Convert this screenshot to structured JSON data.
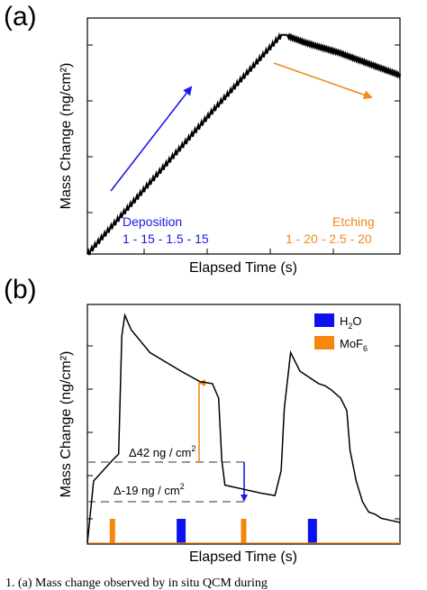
{
  "colors": {
    "deposition": "#1a1ae6",
    "etching": "#f08a1a",
    "h2o_bar": "#0a12f0",
    "mof6_bar": "#f7860f",
    "trace": "#000000",
    "dash": "#8a8a8a"
  },
  "panel_a": {
    "label": "(a)",
    "deposition_label": "Deposition",
    "deposition_sequence": "1 - 15 - 1.5 - 15",
    "etching_label": "Etching",
    "etching_sequence": "1 - 20 - 2.5 - 20"
  },
  "panel_b": {
    "label": "(b)",
    "annotation_upper": "Δ42 ng / cm",
    "annotation_upper_sup": "2",
    "annotation_lower": "Δ-19 ng / cm",
    "annotation_lower_sup": "2",
    "legend": [
      {
        "base": "H",
        "sub": "2",
        "tail": "O",
        "color": "#0a12f0"
      },
      {
        "base": "MoF",
        "sub": "6",
        "tail": "",
        "color": "#f7860f"
      }
    ]
  },
  "caption": "1. (a) Mass change observed by in situ QCM during",
  "chart_data": [
    {
      "type": "line",
      "panel": "(a)",
      "xlabel": "Elapsed Time (s)",
      "ylabel": "Mass Change (ng/cm²)",
      "x_ticks_labeled": false,
      "y_ticks_labeled": false,
      "series": [
        {
          "name": "Deposition",
          "x": [
            0.0,
            0.2,
            0.4,
            0.5,
            0.62,
            0.64
          ],
          "y": [
            0.0,
            0.31,
            0.62,
            0.77,
            0.95,
            0.95
          ]
        },
        {
          "name": "Etching",
          "x": [
            0.64,
            0.7,
            0.8,
            0.9,
            1.0
          ],
          "y": [
            0.95,
            0.92,
            0.88,
            0.83,
            0.78
          ]
        }
      ]
    },
    {
      "type": "line",
      "panel": "(b)",
      "xlabel": "Elapsed Time (s)",
      "ylabel": "Mass Change (ng/cm²)",
      "x_ticks_labeled": false,
      "y_ticks_labeled": false,
      "series": [
        {
          "x": [
            0.0,
            0.02,
            0.08,
            0.1,
            0.11,
            0.12,
            0.14,
            0.2,
            0.3,
            0.36,
            0.4,
            0.42,
            0.43,
            0.44,
            0.47,
            0.5,
            0.53,
            0.56,
            0.6,
            0.62,
            0.63,
            0.65,
            0.68,
            0.74,
            0.76,
            0.78,
            0.81,
            0.83,
            0.84,
            0.86,
            0.88,
            0.9,
            0.92,
            0.94,
            0.97,
            1.0
          ],
          "y": [
            -0.1,
            0.2,
            0.3,
            0.33,
            0.9,
            1.0,
            0.93,
            0.82,
            0.73,
            0.68,
            0.67,
            0.6,
            0.3,
            0.18,
            0.17,
            0.16,
            0.15,
            0.14,
            0.13,
            0.25,
            0.55,
            0.82,
            0.73,
            0.67,
            0.66,
            0.64,
            0.6,
            0.54,
            0.35,
            0.2,
            0.1,
            0.05,
            0.04,
            0.02,
            0.01,
            0.0
          ]
        }
      ],
      "pulse_events": [
        {
          "series": "MoF6",
          "x": 0.08
        },
        {
          "series": "H2O",
          "x": 0.3
        },
        {
          "series": "MoF6",
          "x": 0.5
        },
        {
          "series": "H2O",
          "x": 0.72
        }
      ]
    }
  ]
}
